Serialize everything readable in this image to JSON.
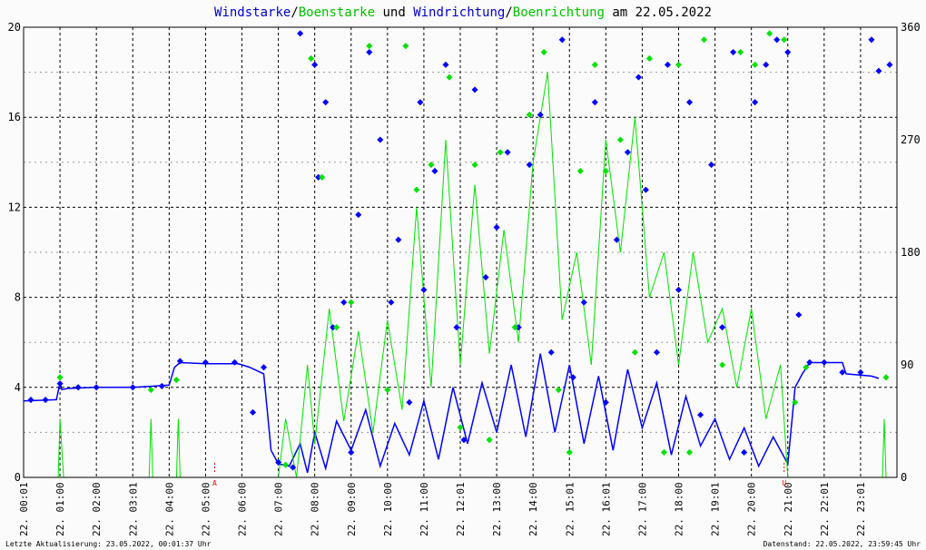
{
  "header": {
    "title_part1": "Windstarke",
    "title_sep1": "/",
    "title_part2": "Boenstarke",
    "title_mid": " und ",
    "title_part3": "Windrichtung",
    "title_sep2": "/",
    "title_part4": "Boenrichtung",
    "title_suffix": " am 22.05.2022"
  },
  "footer": {
    "last_update": "Letzte Aktualisierung: 23.05.2022, 00:01:37 Uhr",
    "data_status": "Datenstand: 22.05.2022, 23:59:45 Uhr"
  },
  "colors": {
    "wind": "#0000ff",
    "gust": "#00e000",
    "grid": "#000000",
    "marker": "#ff0000",
    "background": "#fbfbfb"
  },
  "chart_data": {
    "type": "line",
    "x_unit": "time of day (hours)",
    "xlim": [
      0,
      24
    ],
    "ylim_left": [
      0,
      20
    ],
    "ylim_right": [
      0,
      360
    ],
    "y_ticks_left": [
      "0",
      "4",
      "8",
      "12",
      "16",
      "20"
    ],
    "y_ticks_right": [
      "0",
      "90",
      "180",
      "270",
      "360"
    ],
    "x_ticks": [
      "22. 00:01",
      "22. 01:00",
      "22. 02:00",
      "22. 03:01",
      "22. 04:00",
      "22. 05:00",
      "22. 06:00",
      "22. 07:00",
      "22. 08:00",
      "22. 09:00",
      "22. 10:00",
      "22. 11:00",
      "22. 12:01",
      "22. 13:00",
      "22. 14:00",
      "22. 15:01",
      "22. 16:01",
      "22. 17:00",
      "22. 18:00",
      "22. 19:01",
      "22. 20:00",
      "22. 21:00",
      "22. 22:01",
      "22. 23:01"
    ],
    "markers": [
      {
        "label": "A",
        "hour": 5.25
      },
      {
        "label": "U",
        "hour": 20.9
      }
    ],
    "series": [
      {
        "name": "Windstarke",
        "axis": "left",
        "style": "line",
        "note": "wind speed; daytime segment is highly fluctuating",
        "points": [
          [
            0,
            3.4
          ],
          [
            0.9,
            3.45
          ],
          [
            1.0,
            4.2
          ],
          [
            1.05,
            3.9
          ],
          [
            1.2,
            3.95
          ],
          [
            2,
            4.0
          ],
          [
            3,
            4.0
          ],
          [
            3.5,
            4.05
          ],
          [
            4.0,
            4.1
          ],
          [
            4.15,
            4.9
          ],
          [
            4.3,
            5.1
          ],
          [
            5,
            5.05
          ],
          [
            5.9,
            5.05
          ],
          [
            6.2,
            4.9
          ],
          [
            6.6,
            4.6
          ],
          [
            6.8,
            1.2
          ],
          [
            7.0,
            0.6
          ],
          [
            7.3,
            0.5
          ],
          [
            7.6,
            1.5
          ],
          [
            7.8,
            0.2
          ],
          [
            8.0,
            2.0
          ],
          [
            8.3,
            0.4
          ],
          [
            8.6,
            2.5
          ],
          [
            9.0,
            1.2
          ],
          [
            9.4,
            3.0
          ],
          [
            9.8,
            0.5
          ],
          [
            10.2,
            2.4
          ],
          [
            10.6,
            1.0
          ],
          [
            11.0,
            3.4
          ],
          [
            11.4,
            0.8
          ],
          [
            11.8,
            4.0
          ],
          [
            12.2,
            1.5
          ],
          [
            12.6,
            4.2
          ],
          [
            13.0,
            2.0
          ],
          [
            13.4,
            5.0
          ],
          [
            13.8,
            1.8
          ],
          [
            14.2,
            5.5
          ],
          [
            14.6,
            2.0
          ],
          [
            15.0,
            5.0
          ],
          [
            15.4,
            1.5
          ],
          [
            15.8,
            4.5
          ],
          [
            16.2,
            1.2
          ],
          [
            16.6,
            4.8
          ],
          [
            17.0,
            2.2
          ],
          [
            17.4,
            4.2
          ],
          [
            17.8,
            1.0
          ],
          [
            18.2,
            3.6
          ],
          [
            18.6,
            1.4
          ],
          [
            19.0,
            2.6
          ],
          [
            19.4,
            0.8
          ],
          [
            19.8,
            2.2
          ],
          [
            20.2,
            0.5
          ],
          [
            20.6,
            1.8
          ],
          [
            21.0,
            0.6
          ],
          [
            21.2,
            4.0
          ],
          [
            21.4,
            4.6
          ],
          [
            21.6,
            5.1
          ],
          [
            22.0,
            5.1
          ],
          [
            22.5,
            5.1
          ],
          [
            22.6,
            4.6
          ],
          [
            23.3,
            4.5
          ],
          [
            23.5,
            4.4
          ]
        ]
      },
      {
        "name": "Boenstarke",
        "axis": "left",
        "style": "line",
        "note": "gust speed; daytime segment step-like with peaks",
        "points": [
          [
            0.95,
            0
          ],
          [
            1.0,
            2.6
          ],
          [
            1.1,
            0
          ],
          [
            3.45,
            0
          ],
          [
            3.5,
            2.6
          ],
          [
            3.55,
            0
          ],
          [
            4.2,
            0
          ],
          [
            4.25,
            2.6
          ],
          [
            4.3,
            0
          ],
          [
            7.0,
            0
          ],
          [
            7.2,
            2.6
          ],
          [
            7.5,
            0
          ],
          [
            7.8,
            5.0
          ],
          [
            8.0,
            1.5
          ],
          [
            8.4,
            7.5
          ],
          [
            8.8,
            2.5
          ],
          [
            9.2,
            6.5
          ],
          [
            9.6,
            2.0
          ],
          [
            10.0,
            7.0
          ],
          [
            10.4,
            3.0
          ],
          [
            10.8,
            12.0
          ],
          [
            11.2,
            4.0
          ],
          [
            11.6,
            15.0
          ],
          [
            12.0,
            5.0
          ],
          [
            12.4,
            13.0
          ],
          [
            12.8,
            5.5
          ],
          [
            13.2,
            11.0
          ],
          [
            13.6,
            6.0
          ],
          [
            14.0,
            14.0
          ],
          [
            14.4,
            18.0
          ],
          [
            14.8,
            7.0
          ],
          [
            15.2,
            10.0
          ],
          [
            15.6,
            5.0
          ],
          [
            16.0,
            15.0
          ],
          [
            16.4,
            10.0
          ],
          [
            16.8,
            16.0
          ],
          [
            17.2,
            8.0
          ],
          [
            17.6,
            10.0
          ],
          [
            18.0,
            5.0
          ],
          [
            18.4,
            10.0
          ],
          [
            18.8,
            6.0
          ],
          [
            19.2,
            7.5
          ],
          [
            19.6,
            4.0
          ],
          [
            20.0,
            7.5
          ],
          [
            20.4,
            2.6
          ],
          [
            20.8,
            5.0
          ],
          [
            21.0,
            0
          ],
          [
            23.6,
            0
          ],
          [
            23.65,
            2.6
          ],
          [
            23.7,
            0
          ]
        ]
      },
      {
        "name": "Windrichtung",
        "axis": "right",
        "style": "scatter",
        "note": "wind direction in degrees",
        "points": [
          [
            0.2,
            62
          ],
          [
            0.6,
            62
          ],
          [
            1.0,
            75
          ],
          [
            1.5,
            72
          ],
          [
            2.0,
            72
          ],
          [
            3.0,
            72
          ],
          [
            3.8,
            73
          ],
          [
            4.3,
            93
          ],
          [
            5.0,
            92
          ],
          [
            5.8,
            92
          ],
          [
            6.3,
            52
          ],
          [
            6.6,
            88
          ],
          [
            7.0,
            12
          ],
          [
            7.4,
            8
          ],
          [
            7.6,
            355
          ],
          [
            8.0,
            330
          ],
          [
            8.1,
            240
          ],
          [
            8.3,
            300
          ],
          [
            8.5,
            120
          ],
          [
            8.8,
            140
          ],
          [
            9.0,
            20
          ],
          [
            9.2,
            210
          ],
          [
            9.5,
            340
          ],
          [
            9.8,
            270
          ],
          [
            10.1,
            140
          ],
          [
            10.3,
            190
          ],
          [
            10.6,
            60
          ],
          [
            10.9,
            300
          ],
          [
            11.0,
            150
          ],
          [
            11.3,
            245
          ],
          [
            11.6,
            330
          ],
          [
            11.9,
            120
          ],
          [
            12.1,
            30
          ],
          [
            12.4,
            310
          ],
          [
            12.7,
            160
          ],
          [
            13.0,
            200
          ],
          [
            13.3,
            260
          ],
          [
            13.6,
            120
          ],
          [
            13.9,
            250
          ],
          [
            14.2,
            290
          ],
          [
            14.5,
            100
          ],
          [
            14.8,
            350
          ],
          [
            15.1,
            80
          ],
          [
            15.4,
            140
          ],
          [
            15.7,
            300
          ],
          [
            16.0,
            60
          ],
          [
            16.3,
            190
          ],
          [
            16.6,
            260
          ],
          [
            16.9,
            320
          ],
          [
            17.1,
            230
          ],
          [
            17.4,
            100
          ],
          [
            17.7,
            330
          ],
          [
            18.0,
            150
          ],
          [
            18.3,
            300
          ],
          [
            18.6,
            50
          ],
          [
            18.9,
            250
          ],
          [
            19.2,
            120
          ],
          [
            19.5,
            340
          ],
          [
            19.8,
            20
          ],
          [
            20.1,
            300
          ],
          [
            20.4,
            330
          ],
          [
            20.7,
            350
          ],
          [
            21.0,
            340
          ],
          [
            21.3,
            130
          ],
          [
            21.6,
            92
          ],
          [
            22.0,
            92
          ],
          [
            22.5,
            84
          ],
          [
            23.0,
            84
          ],
          [
            23.3,
            350
          ],
          [
            23.5,
            325
          ],
          [
            23.8,
            330
          ]
        ]
      },
      {
        "name": "Boenrichtung",
        "axis": "right",
        "style": "scatter",
        "note": "gust direction in degrees",
        "points": [
          [
            1.0,
            80
          ],
          [
            3.5,
            70
          ],
          [
            4.2,
            78
          ],
          [
            7.2,
            10
          ],
          [
            7.9,
            335
          ],
          [
            8.2,
            240
          ],
          [
            8.6,
            120
          ],
          [
            9.0,
            140
          ],
          [
            9.5,
            345
          ],
          [
            10.0,
            70
          ],
          [
            10.5,
            345
          ],
          [
            10.8,
            230
          ],
          [
            11.2,
            250
          ],
          [
            11.7,
            320
          ],
          [
            12.0,
            40
          ],
          [
            12.4,
            250
          ],
          [
            12.8,
            30
          ],
          [
            13.1,
            260
          ],
          [
            13.5,
            120
          ],
          [
            13.9,
            290
          ],
          [
            14.3,
            340
          ],
          [
            14.7,
            70
          ],
          [
            15.0,
            20
          ],
          [
            15.3,
            245
          ],
          [
            15.7,
            330
          ],
          [
            16.0,
            245
          ],
          [
            16.4,
            270
          ],
          [
            16.8,
            100
          ],
          [
            17.2,
            335
          ],
          [
            17.6,
            20
          ],
          [
            18.0,
            330
          ],
          [
            18.3,
            20
          ],
          [
            18.7,
            350
          ],
          [
            19.2,
            90
          ],
          [
            19.7,
            340
          ],
          [
            20.1,
            330
          ],
          [
            20.5,
            355
          ],
          [
            20.9,
            350
          ],
          [
            21.2,
            60
          ],
          [
            21.5,
            88
          ],
          [
            23.7,
            80
          ]
        ]
      }
    ]
  }
}
